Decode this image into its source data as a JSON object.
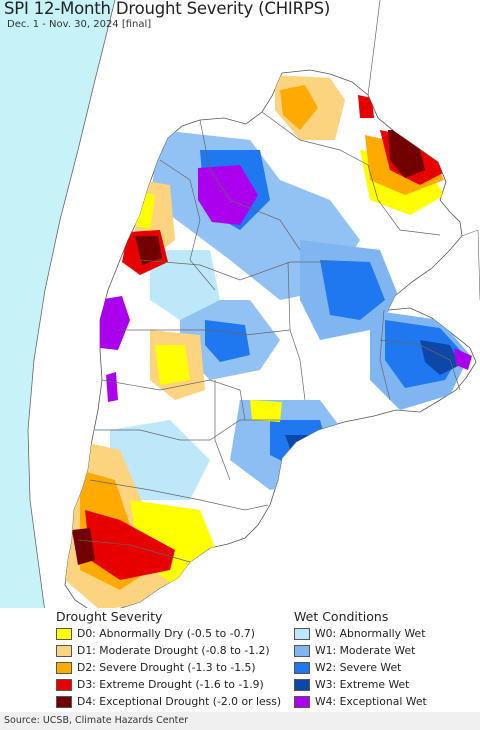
{
  "header": {
    "title": "SPI 12-Month Drought Severity (CHIRPS)",
    "subtitle": "Dec. 1 - Nov. 30, 2024 [final]"
  },
  "colors": {
    "ocean": "#c6f2f8",
    "land": "#ffffff",
    "outside_land": "#ffffff",
    "border": "#555555"
  },
  "legend": {
    "drought": {
      "title": "Drought Severity",
      "items": [
        {
          "label": "D0: Abnormally Dry (-0.5 to -0.7)",
          "color": "#ffff00"
        },
        {
          "label": "D1: Moderate Drought (-0.8 to -1.2)",
          "color": "#fcd37f"
        },
        {
          "label": "D2: Severe Drought (-1.3 to -1.5)",
          "color": "#ffaa00"
        },
        {
          "label": "D3: Extreme Drought (-1.6 to -1.9)",
          "color": "#e60000"
        },
        {
          "label": "D4: Exceptional Drought (-2.0 or less)",
          "color": "#730000"
        }
      ]
    },
    "wet": {
      "title": "Wet Conditions",
      "items": [
        {
          "label": "W0: Abnormally Wet",
          "color": "#bde8fa"
        },
        {
          "label": "W1: Moderate Wet",
          "color": "#7fb6f2"
        },
        {
          "label": "W2: Severe Wet",
          "color": "#1f78f0"
        },
        {
          "label": "W3: Extreme Wet",
          "color": "#0d47a8"
        },
        {
          "label": "W4: Exceptional Wet",
          "color": "#aa00ee"
        }
      ]
    }
  },
  "footer": {
    "source": "Source: UCSB, Climate Hazards Center"
  }
}
